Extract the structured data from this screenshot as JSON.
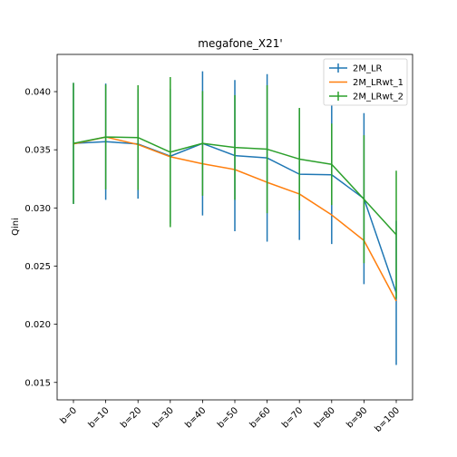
{
  "chart_data": {
    "type": "line",
    "title": "megafone_X21'",
    "xlabel": "",
    "ylabel": "Qini",
    "categories": [
      "b=0",
      "b=10",
      "b=20",
      "b=30",
      "b=40",
      "b=50",
      "b=60",
      "b=70",
      "b=80",
      "b=90",
      "b=100"
    ],
    "ylim": [
      0.0135,
      0.0432
    ],
    "yticks": [
      0.015,
      0.02,
      0.025,
      0.03,
      0.035,
      0.04
    ],
    "ytick_labels": [
      "0.015",
      "0.020",
      "0.025",
      "0.030",
      "0.035",
      "0.040"
    ],
    "grid": false,
    "legend_position": "top-right",
    "series": [
      {
        "name": "2M_LR",
        "color": "#1f77b4",
        "values": [
          0.03555,
          0.0357,
          0.0355,
          0.03445,
          0.03555,
          0.0345,
          0.0343,
          0.0329,
          0.03285,
          0.0308,
          0.0227
        ],
        "errors": [
          0.0052,
          0.005,
          0.0047,
          0.0058,
          0.0062,
          0.0065,
          0.0072,
          0.00565,
          0.00595,
          0.00735,
          0.0062
        ]
      },
      {
        "name": "2M_LRwt_1",
        "color": "#ff7f0e",
        "values": [
          0.0355,
          0.0361,
          0.03545,
          0.0344,
          0.0338,
          0.0333,
          0.0322,
          0.0312,
          0.0294,
          0.0272,
          0.022
        ]
      },
      {
        "name": "2M_LRwt_2",
        "color": "#2ca02c",
        "values": [
          0.03555,
          0.0361,
          0.03605,
          0.0348,
          0.03555,
          0.0352,
          0.03505,
          0.0342,
          0.03375,
          0.03075,
          0.0277
        ],
        "errors": [
          0.0052,
          0.0045,
          0.0045,
          0.00645,
          0.0045,
          0.0045,
          0.0055,
          0.0044,
          0.0035,
          0.0055,
          0.0055
        ]
      }
    ]
  }
}
